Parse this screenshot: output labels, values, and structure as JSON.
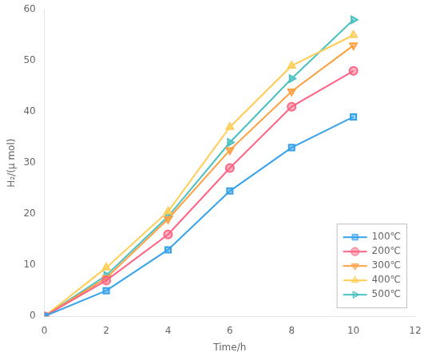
{
  "chart_data": {
    "type": "line",
    "title": "",
    "xlabel": "Time/h",
    "ylabel": "H₂/(μ mol)",
    "xlim": [
      0,
      12
    ],
    "ylim": [
      0,
      60
    ],
    "xticks": [
      0,
      2,
      4,
      6,
      8,
      10,
      12
    ],
    "yticks": [
      0,
      10,
      20,
      30,
      40,
      50,
      60
    ],
    "grid": false,
    "legend": "lower right",
    "series": [
      {
        "name": "100℃",
        "x": [
          0,
          2,
          4,
          6,
          8,
          10
        ],
        "values": [
          0,
          5,
          13,
          24.5,
          33,
          39
        ],
        "marker": "square"
      },
      {
        "name": "200℃",
        "x": [
          0,
          2,
          4,
          6,
          8,
          10
        ],
        "values": [
          0,
          7,
          16,
          29,
          41,
          48
        ],
        "marker": "circle"
      },
      {
        "name": "300℃",
        "x": [
          0,
          2,
          4,
          6,
          8,
          10
        ],
        "values": [
          0,
          7.5,
          19,
          32.5,
          44,
          53
        ],
        "marker": "triangle_down"
      },
      {
        "name": "400℃",
        "x": [
          0,
          2,
          4,
          6,
          8,
          10
        ],
        "values": [
          0,
          9.5,
          20.5,
          37,
          49,
          55
        ],
        "marker": "triangle_up"
      },
      {
        "name": "500℃",
        "x": [
          0,
          2,
          4,
          6,
          8,
          10
        ],
        "values": [
          0,
          8,
          19.5,
          34,
          46.5,
          58
        ],
        "marker": "triangle_right"
      }
    ]
  }
}
